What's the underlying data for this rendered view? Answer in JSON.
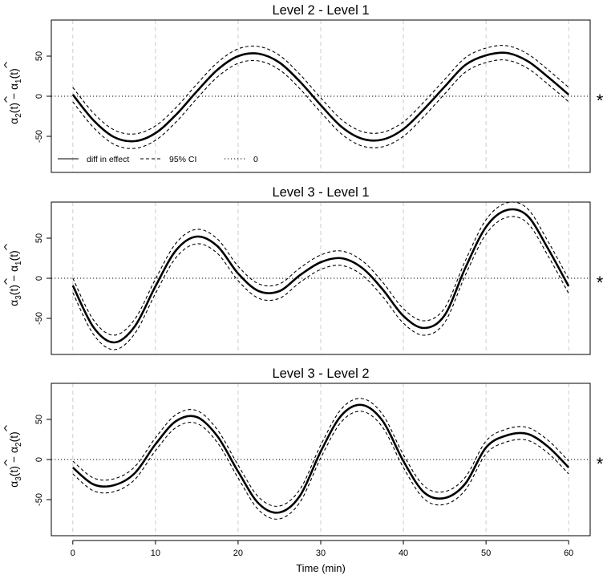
{
  "chart_data": [
    {
      "type": "line",
      "title": "Level 2 - Level 1",
      "ylabel": "α̂2(t) − α̂1(t)",
      "ylabel_parts": [
        "α",
        "2",
        "(t) − ",
        "α",
        "1",
        "(t)"
      ],
      "xlim": [
        0,
        60
      ],
      "ylim": [
        -95,
        95
      ],
      "yticks": [
        -50,
        0,
        50
      ],
      "significance_marker": "*",
      "legend": {
        "placement": "bottom-left",
        "entries": [
          {
            "label": "diff in effect",
            "style": "solid"
          },
          {
            "label": "95% CI",
            "style": "dashed"
          },
          {
            "label": "0",
            "style": "dotted"
          }
        ]
      },
      "series": [
        {
          "name": "diff in effect",
          "style": "solid",
          "x": [
            0,
            2.5,
            5,
            7.5,
            10,
            12.5,
            15,
            17.5,
            20,
            22.5,
            25,
            27.5,
            30,
            32.5,
            35,
            37.5,
            40,
            42.5,
            45,
            47.5,
            50,
            52.5,
            55,
            57.5,
            60
          ],
          "y": [
            2,
            -30,
            -51,
            -56,
            -46,
            -23,
            6,
            33,
            50,
            53,
            42,
            18,
            -11,
            -38,
            -53,
            -54,
            -41,
            -16,
            12,
            39,
            51,
            54,
            44,
            24,
            2
          ]
        }
      ],
      "ci_halfwidth": 9
    },
    {
      "type": "line",
      "title": "Level 3 - Level 1",
      "ylabel": "α̂3(t) − α̂1(t)",
      "ylabel_parts": [
        "α",
        "3",
        "(t) − ",
        "α",
        "1",
        "(t)"
      ],
      "xlim": [
        0,
        60
      ],
      "ylim": [
        -95,
        95
      ],
      "yticks": [
        -50,
        0,
        50
      ],
      "significance_marker": "*",
      "series": [
        {
          "name": "diff in effect",
          "style": "solid",
          "x": [
            0,
            2.5,
            5,
            7.5,
            10,
            12.5,
            15,
            17.5,
            20,
            22.5,
            25,
            27.5,
            30,
            32.5,
            35,
            37.5,
            40,
            42.5,
            45,
            47.5,
            50,
            52.5,
            55,
            57.5,
            60
          ],
          "y": [
            -9,
            -61,
            -80,
            -60,
            -10,
            35,
            52,
            40,
            6,
            -16,
            -16,
            4,
            20,
            25,
            13,
            -14,
            -47,
            -62,
            -46,
            13,
            64,
            85,
            78,
            37,
            -10
          ]
        }
      ],
      "ci_halfwidth": 9
    },
    {
      "type": "line",
      "title": "Level 3 - Level 2",
      "ylabel": "α̂3(t) − α̂2(t)",
      "ylabel_parts": [
        "α",
        "3",
        "(t) − ",
        "α",
        "2",
        "(t)"
      ],
      "xlabel": "Time (min)",
      "xlim": [
        0,
        60
      ],
      "ylim": [
        -95,
        95
      ],
      "xticks": [
        0,
        10,
        20,
        30,
        40,
        50,
        60
      ],
      "yticks": [
        -50,
        0,
        50
      ],
      "significance_marker": "*",
      "series": [
        {
          "name": "diff in effect",
          "style": "solid",
          "x": [
            0,
            2.5,
            5,
            7.5,
            10,
            12.5,
            15,
            17.5,
            20,
            22.5,
            25,
            27.5,
            30,
            32.5,
            35,
            37.5,
            40,
            42.5,
            45,
            47.5,
            50,
            52.5,
            55,
            57.5,
            60
          ],
          "y": [
            -10,
            -31,
            -32,
            -17,
            19,
            48,
            53,
            29,
            -15,
            -55,
            -66,
            -45,
            10,
            55,
            68,
            48,
            -2,
            -41,
            -48,
            -30,
            15,
            30,
            32,
            16,
            -10
          ]
        }
      ],
      "ci_halfwidth": 8
    }
  ]
}
